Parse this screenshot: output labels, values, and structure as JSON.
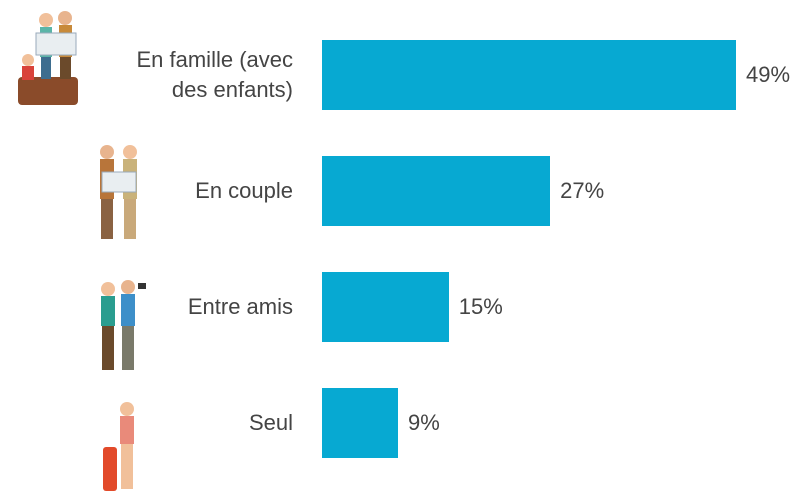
{
  "chart_data": {
    "type": "bar",
    "orientation": "horizontal",
    "categories": [
      "En famille (avec des enfants)",
      "En couple",
      "Entre amis",
      "Seul"
    ],
    "values": [
      49,
      27,
      15,
      9
    ],
    "value_labels": [
      "49%",
      "27%",
      "15%",
      "9%"
    ],
    "color": "#07a9d2"
  }
}
